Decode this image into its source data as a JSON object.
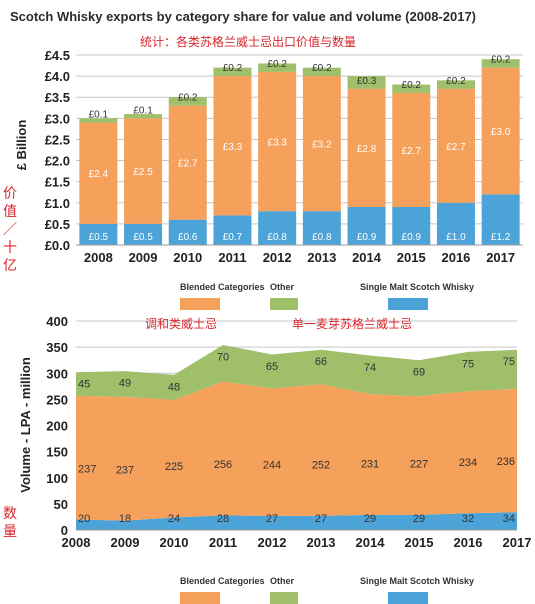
{
  "title": "Scotch Whisky exports by category share for value and volume (2008-2017)",
  "subtitle_cn": "统计：各类苏格兰威士忌出口价值与数量",
  "colors": {
    "blended": "#f6a15b",
    "other": "#9fbf6a",
    "single_malt": "#4ba3d8",
    "grid": "#c8c8c8"
  },
  "chart_data": [
    {
      "type": "bar",
      "stacked": true,
      "categories": [
        "2008",
        "2009",
        "2010",
        "2011",
        "2012",
        "2013",
        "2014",
        "2015",
        "2016",
        "2017"
      ],
      "series": [
        {
          "name": "Single Malt Scotch Whisky",
          "color_key": "single_malt",
          "values": [
            0.5,
            0.5,
            0.6,
            0.7,
            0.8,
            0.8,
            0.9,
            0.9,
            1.0,
            1.2
          ],
          "labels": [
            "£0.5",
            "£0.5",
            "£0.6",
            "£0.7",
            "£0.8",
            "£0.8",
            "£0.9",
            "£0.9",
            "£1.0",
            "£1.2"
          ]
        },
        {
          "name": "Blended Categories",
          "color_key": "blended",
          "values": [
            2.4,
            2.5,
            2.7,
            3.3,
            3.3,
            3.2,
            2.8,
            2.7,
            2.7,
            3.0
          ],
          "labels": [
            "£2.4",
            "£2.5",
            "£2.7",
            "£3.3",
            "£3.3",
            "£3.2",
            "£2.8",
            "£2.7",
            "£2.7",
            "£3.0"
          ]
        },
        {
          "name": "Other",
          "color_key": "other",
          "values": [
            0.1,
            0.1,
            0.2,
            0.2,
            0.2,
            0.2,
            0.3,
            0.2,
            0.2,
            0.2
          ],
          "labels": [
            "£0.1",
            "£0.1",
            "£0.2",
            "£0.2",
            "£0.2",
            "£0.2",
            "£0.3",
            "£0.2",
            "£0.2",
            "£0.2"
          ]
        }
      ],
      "ylabel": "£ Billion",
      "ylabel_cn": "价值／十亿",
      "ylim": [
        0,
        4.5
      ],
      "yticks": [
        "£0.0",
        "£0.5",
        "£1.0",
        "£1.5",
        "£2.0",
        "£2.5",
        "£3.0",
        "£3.5",
        "£4.0",
        "£4.5"
      ],
      "legend": [
        "Blended Categories",
        "Other",
        "Single Malt Scotch Whisky"
      ],
      "grid": true
    },
    {
      "type": "area",
      "stacked": true,
      "x": [
        "2008",
        "2009",
        "2010",
        "2011",
        "2012",
        "2013",
        "2014",
        "2015",
        "2016",
        "2017"
      ],
      "series": [
        {
          "name": "Single Malt Scotch Whisky",
          "color_key": "single_malt",
          "values": [
            20,
            18,
            24,
            28,
            27,
            27,
            29,
            29,
            32,
            34
          ]
        },
        {
          "name": "Blended Categories",
          "color_key": "blended",
          "values": [
            237,
            237,
            225,
            256,
            244,
            252,
            231,
            227,
            234,
            236
          ]
        },
        {
          "name": "Other",
          "color_key": "other",
          "values": [
            45,
            49,
            48,
            70,
            65,
            66,
            74,
            69,
            75,
            75
          ]
        }
      ],
      "annotations_cn": [
        "调和类威士忌",
        "单一麦芽苏格兰威士忌"
      ],
      "ylabel": "Volume - LPA - million",
      "ylabel_cn": "数量",
      "ylim": [
        0,
        400
      ],
      "yticks": [
        "0",
        "50",
        "100",
        "150",
        "200",
        "250",
        "300",
        "350",
        "400"
      ],
      "legend": [
        "Blended Categories",
        "Other",
        "Single Malt Scotch Whisky"
      ],
      "grid": true
    }
  ]
}
